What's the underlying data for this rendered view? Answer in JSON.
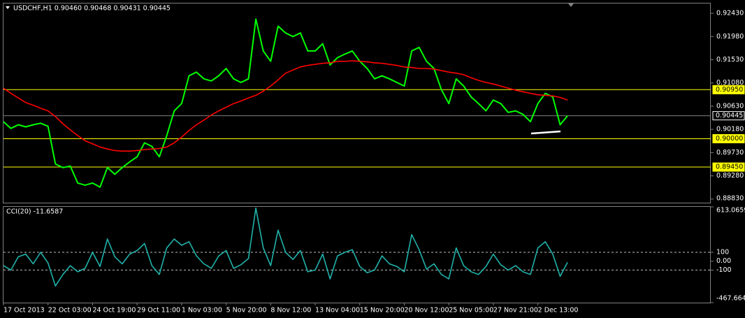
{
  "chart_data": [
    {
      "type": "line",
      "title": "USDCHF,H1 0.90460 0.90468 0.90431 0.90445",
      "ylim": [
        0.8876,
        0.9262
      ],
      "yticks": [
        {
          "value": 0.9243,
          "label": "0.92430"
        },
        {
          "value": 0.9198,
          "label": "0.91980"
        },
        {
          "value": 0.9153,
          "label": "0.91530"
        },
        {
          "value": 0.9108,
          "label": "0.91080"
        },
        {
          "value": 0.9063,
          "label": "0.90630"
        },
        {
          "value": 0.9018,
          "label": "0.90180"
        },
        {
          "value": 0.8973,
          "label": "0.89730"
        },
        {
          "value": 0.8928,
          "label": "0.89280"
        },
        {
          "value": 0.8883,
          "label": "0.88830"
        }
      ],
      "hlines": [
        {
          "value": 0.9095,
          "label": "0.90950",
          "color": "#ffff00"
        },
        {
          "value": 0.90445,
          "color": "#808080"
        },
        {
          "value": 0.9,
          "label": "0.90000",
          "color": "#ffff00"
        },
        {
          "value": 0.8945,
          "label": "0.89450",
          "color": "#ffff00"
        }
      ],
      "series": [
        {
          "color": "#00ff00",
          "values": [
            0.9033,
            0.902,
            0.9027,
            0.9023,
            0.9027,
            0.903,
            0.9024,
            0.8951,
            0.8944,
            0.8947,
            0.8914,
            0.891,
            0.8914,
            0.8906,
            0.8944,
            0.8931,
            0.8944,
            0.8955,
            0.8965,
            0.8992,
            0.8985,
            0.8965,
            0.9006,
            0.9054,
            0.9068,
            0.9122,
            0.9129,
            0.9116,
            0.9112,
            0.9122,
            0.9136,
            0.9116,
            0.9109,
            0.9116,
            0.9232,
            0.917,
            0.915,
            0.9218,
            0.9205,
            0.9198,
            0.9205,
            0.917,
            0.917,
            0.9184,
            0.9143,
            0.9157,
            0.9164,
            0.917,
            0.915,
            0.9136,
            0.9116,
            0.9122,
            0.9116,
            0.9109,
            0.9102,
            0.917,
            0.9177,
            0.915,
            0.9136,
            0.9095,
            0.9068,
            0.9116,
            0.9102,
            0.9081,
            0.9068,
            0.9054,
            0.9075,
            0.9068,
            0.9051,
            0.9054,
            0.9047,
            0.9033,
            0.9068,
            0.9088,
            0.9081,
            0.9027,
            0.90445
          ]
        },
        {
          "color": "#ff0000",
          "values": [
            0.9098,
            0.9088,
            0.9079,
            0.907,
            0.9065,
            0.9059,
            0.9054,
            0.9043,
            0.9029,
            0.9017,
            0.9006,
            0.8996,
            0.899,
            0.8984,
            0.898,
            0.8977,
            0.8976,
            0.8976,
            0.8977,
            0.8979,
            0.898,
            0.8981,
            0.8984,
            0.8992,
            0.9003,
            0.9016,
            0.9027,
            0.9036,
            0.9046,
            0.9054,
            0.9061,
            0.9068,
            0.9073,
            0.9079,
            0.9084,
            0.9092,
            0.9102,
            0.9114,
            0.9127,
            0.9133,
            0.9139,
            0.9142,
            0.9144,
            0.9146,
            0.9147,
            0.915,
            0.915,
            0.9151,
            0.915,
            0.9149,
            0.9147,
            0.9146,
            0.9144,
            0.9142,
            0.9139,
            0.9138,
            0.9136,
            0.9136,
            0.9135,
            0.9132,
            0.9129,
            0.9127,
            0.9124,
            0.9118,
            0.9113,
            0.9109,
            0.9106,
            0.9102,
            0.9098,
            0.9094,
            0.9091,
            0.9088,
            0.9085,
            0.9084,
            0.9083,
            0.908,
            0.9075
          ]
        }
      ]
    },
    {
      "type": "line",
      "title": "CCI(20) -11.6587",
      "ylim": [
        -467.6643,
        613.0659
      ],
      "yticks": [
        613.0659,
        100,
        {
          "value": 0,
          "label": "0.00"
        },
        -100,
        -467.6643
      ],
      "levels": [
        100,
        -100
      ],
      "categories": [
        "17 Oct 2013",
        null,
        null,
        null,
        null,
        null,
        "22 Oct 03:00",
        null,
        null,
        null,
        null,
        null,
        "24 Oct 19:00",
        null,
        null,
        null,
        null,
        null,
        "29 Oct 11:00",
        null,
        null,
        null,
        null,
        null,
        "1 Nov 03:00",
        null,
        null,
        null,
        null,
        null,
        "5 Nov 20:00",
        null,
        null,
        null,
        null,
        null,
        "8 Nov 12:00",
        null,
        null,
        null,
        null,
        null,
        "13 Nov 04:00",
        null,
        null,
        null,
        null,
        null,
        "15 Nov 20:00",
        null,
        null,
        null,
        null,
        null,
        "20 Nov 12:00",
        null,
        null,
        null,
        null,
        null,
        "25 Nov 05:00",
        null,
        null,
        null,
        null,
        null,
        "27 Nov 21:00",
        null,
        null,
        null,
        null,
        null,
        "2 Dec 13:00",
        null,
        null,
        null,
        null
      ],
      "series": [
        {
          "color": "#20b2aa",
          "values": [
            -50,
            -100,
            50,
            80,
            -30,
            100,
            -20,
            -280,
            -150,
            -50,
            -120,
            -80,
            100,
            -60,
            250,
            50,
            -30,
            80,
            120,
            200,
            -50,
            -150,
            150,
            250,
            180,
            220,
            60,
            -30,
            -80,
            60,
            120,
            -80,
            -40,
            30,
            600,
            150,
            -50,
            350,
            100,
            20,
            120,
            -120,
            -100,
            80,
            -200,
            60,
            100,
            130,
            -60,
            -130,
            -100,
            60,
            -30,
            -60,
            -120,
            300,
            130,
            -90,
            -30,
            -150,
            -200,
            150,
            -50,
            -120,
            -150,
            -60,
            80,
            -40,
            -100,
            -50,
            -120,
            -150,
            150,
            220,
            80,
            -170,
            -11.6587
          ]
        }
      ]
    }
  ]
}
